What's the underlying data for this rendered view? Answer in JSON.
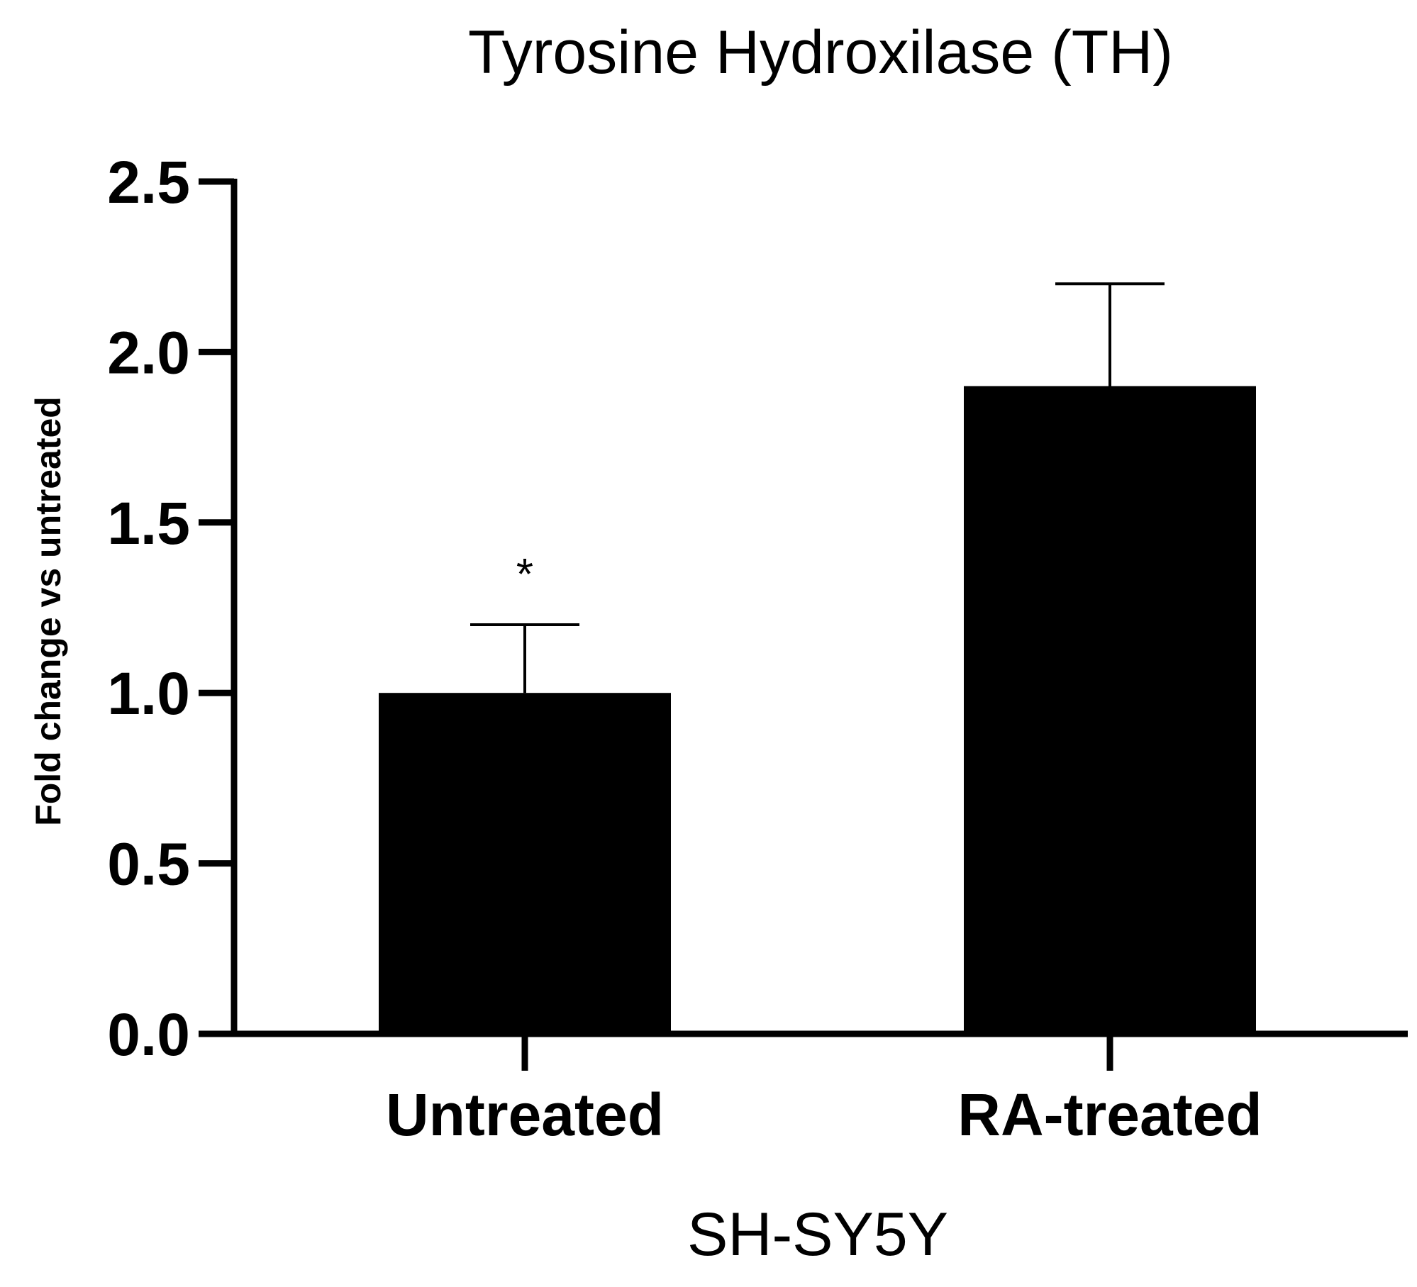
{
  "chart_data": {
    "type": "bar",
    "title": "Tyrosine Hydroxilase (TH)",
    "xlabel": "SH-SY5Y",
    "ylabel": "Fold change vs untreated",
    "categories": [
      "Untreated",
      "RA-treated"
    ],
    "values": [
      1.0,
      1.9
    ],
    "error_upper": [
      0.2,
      0.3
    ],
    "ylim": [
      0,
      2.5
    ],
    "yticks": [
      "0.0",
      "0.5",
      "1.0",
      "1.5",
      "2.0",
      "2.5"
    ],
    "annotations": [
      {
        "category": "Untreated",
        "text": "*"
      }
    ],
    "grid": false,
    "legend": "none",
    "bar_color": "#000000"
  }
}
